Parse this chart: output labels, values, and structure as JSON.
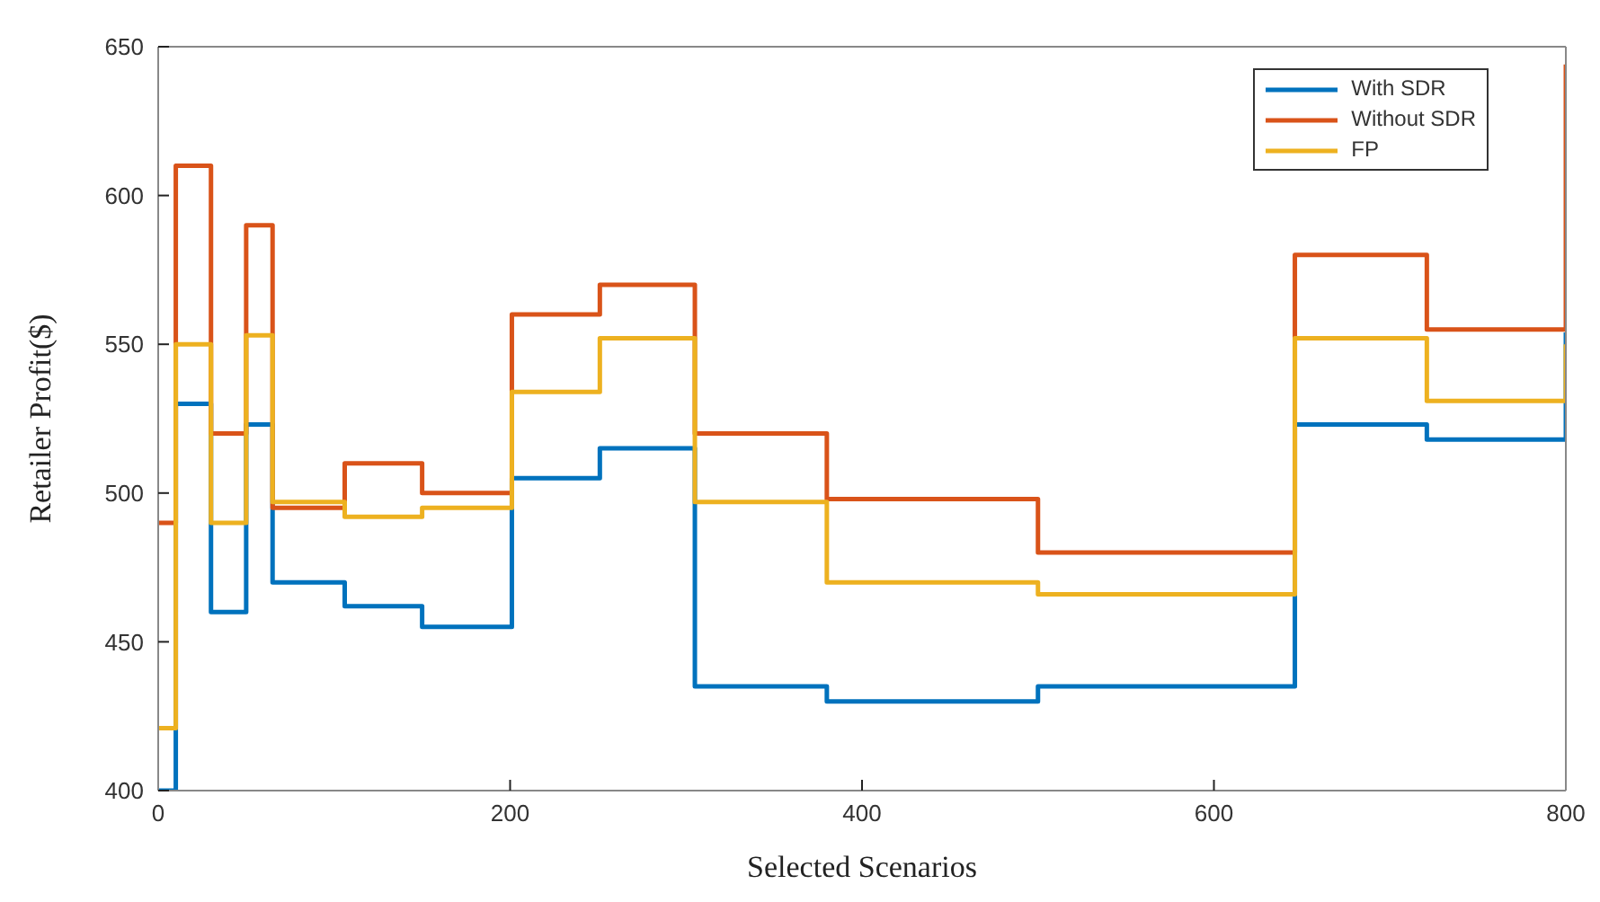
{
  "chart_data": {
    "type": "step",
    "xlabel": "Selected Scenarios",
    "ylabel": "Retailer Profit($)",
    "x": [
      0,
      10,
      30,
      50,
      65,
      106,
      150,
      201,
      251,
      305,
      380,
      500,
      646,
      721,
      800
    ],
    "series": [
      {
        "name": "With SDR",
        "color": "#0072bd",
        "values": [
          400,
          530,
          460,
          523,
          470,
          462,
          455,
          505,
          515,
          435,
          430,
          435,
          523,
          518,
          554
        ]
      },
      {
        "name": "Without SDR",
        "color": "#d95319",
        "values": [
          490,
          610,
          520,
          590,
          495,
          510,
          500,
          560,
          570,
          520,
          498,
          480,
          580,
          555,
          644
        ]
      },
      {
        "name": "FP",
        "color": "#edb120",
        "values": [
          421,
          550,
          490,
          553,
          497,
          492,
          495,
          534,
          552,
          497,
          470,
          466,
          552,
          531,
          550
        ]
      }
    ],
    "xlim": [
      0,
      800
    ],
    "xticks": [
      0,
      200,
      400,
      600,
      800
    ],
    "ylim": [
      400,
      650
    ],
    "yticks": [
      400,
      450,
      500,
      550,
      600,
      650
    ],
    "grid": false,
    "legend": "top right",
    "marker": "none",
    "line_style": "solid"
  }
}
